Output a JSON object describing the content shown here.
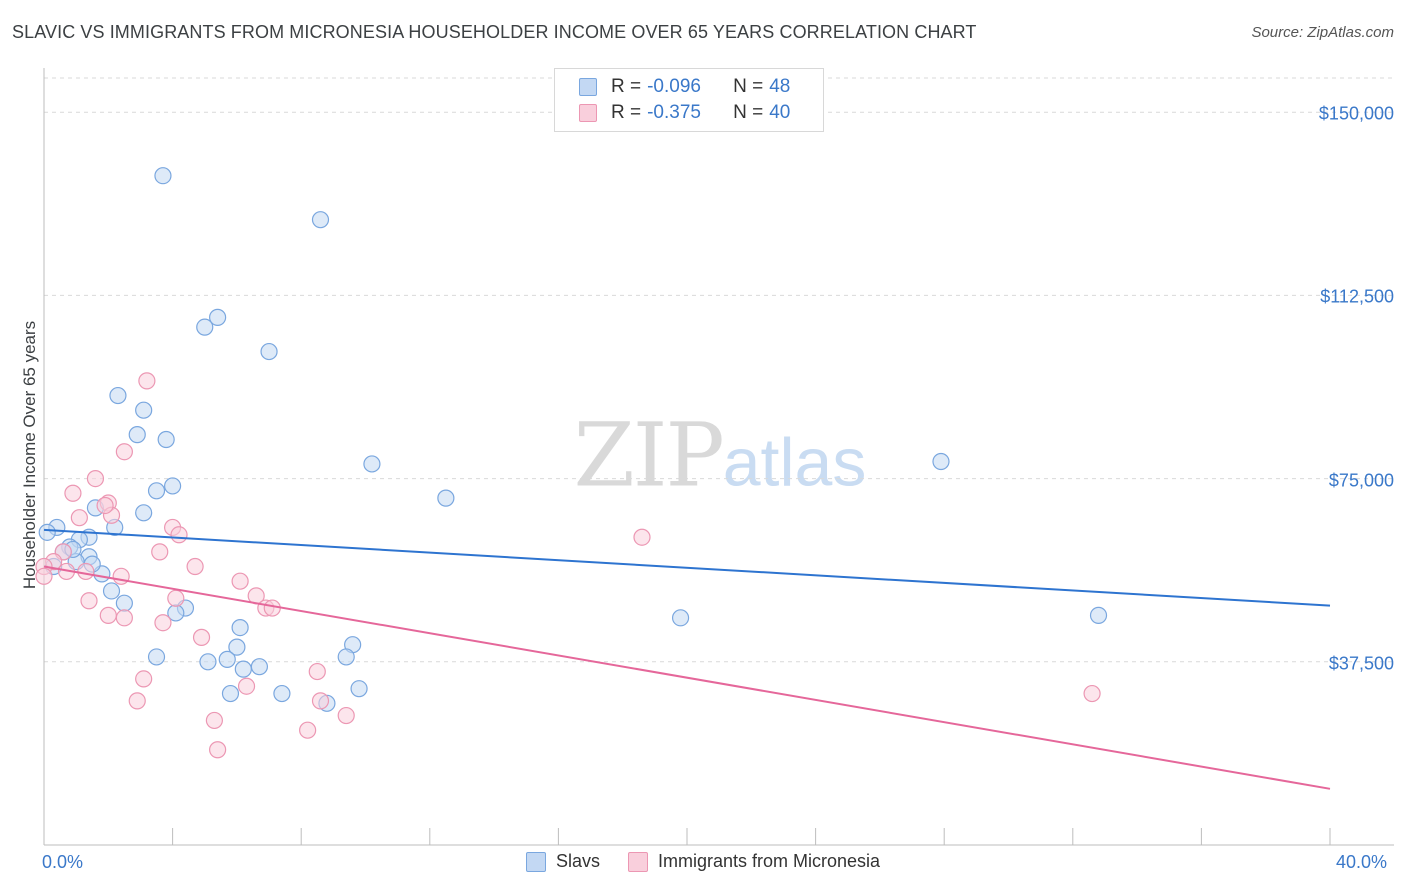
{
  "title": "SLAVIC VS IMMIGRANTS FROM MICRONESIA HOUSEHOLDER INCOME OVER 65 YEARS CORRELATION CHART",
  "source": "Source: ZipAtlas.com",
  "watermark": {
    "zip": "ZIP",
    "atlas": "atlas"
  },
  "legend_top": {
    "rows": [
      {
        "r_label": "R = ",
        "r_value": "-0.096",
        "n_label": "N = ",
        "n_value": "48"
      },
      {
        "r_label": "R = ",
        "r_value": "-0.375",
        "n_label": "N = ",
        "n_value": "40"
      }
    ]
  },
  "legend_bottom": [
    "Slavs",
    "Immigrants from Micronesia"
  ],
  "colors": {
    "blue_fill": "#c3d8f3",
    "blue_stroke": "#7aa7df",
    "blue_line": "#2e74d0",
    "pink_fill": "#f9cfdc",
    "pink_stroke": "#ec97b3",
    "pink_line": "#e5679a",
    "tick_label": "#3a78c9",
    "grid": "#d9d9d9"
  },
  "chart_data": {
    "type": "scatter",
    "title": "SLAVIC VS IMMIGRANTS FROM MICRONESIA HOUSEHOLDER INCOME OVER 65 YEARS CORRELATION CHART",
    "xlabel": "",
    "ylabel": "Householder Income Over 65 years",
    "xlim": [
      0,
      40
    ],
    "ylim": [
      0,
      157000
    ],
    "x_tick_labels": [
      "0.0%",
      "40.0%"
    ],
    "y_ticks": [
      37500,
      75000,
      112500,
      150000
    ],
    "y_tick_labels": [
      "$37,500",
      "$75,000",
      "$112,500",
      "$150,000"
    ],
    "grid": "horizontal dashed",
    "series": [
      {
        "name": "Slavs",
        "points": [
          [
            3.7,
            137000
          ],
          [
            8.6,
            128000
          ],
          [
            5.4,
            108000
          ],
          [
            5.0,
            106000
          ],
          [
            7.0,
            101000
          ],
          [
            2.3,
            92000
          ],
          [
            3.1,
            89000
          ],
          [
            2.9,
            84000
          ],
          [
            3.8,
            83000
          ],
          [
            10.2,
            78000
          ],
          [
            27.9,
            78500
          ],
          [
            12.5,
            71000
          ],
          [
            4.0,
            73500
          ],
          [
            3.5,
            72500
          ],
          [
            1.6,
            69000
          ],
          [
            3.1,
            68000
          ],
          [
            0.4,
            65000
          ],
          [
            2.2,
            65000
          ],
          [
            0.1,
            64000
          ],
          [
            1.4,
            63000
          ],
          [
            1.1,
            62500
          ],
          [
            0.8,
            61000
          ],
          [
            0.6,
            60000
          ],
          [
            1.4,
            59000
          ],
          [
            1.0,
            58000
          ],
          [
            1.8,
            55500
          ],
          [
            2.1,
            52000
          ],
          [
            2.5,
            49500
          ],
          [
            4.4,
            48500
          ],
          [
            4.1,
            47500
          ],
          [
            6.1,
            44500
          ],
          [
            19.8,
            46500
          ],
          [
            32.8,
            47000
          ],
          [
            9.6,
            41000
          ],
          [
            6.0,
            40500
          ],
          [
            3.5,
            38500
          ],
          [
            9.4,
            38500
          ],
          [
            5.7,
            38000
          ],
          [
            5.1,
            37500
          ],
          [
            6.7,
            36500
          ],
          [
            6.2,
            36000
          ],
          [
            9.8,
            32000
          ],
          [
            5.8,
            31000
          ],
          [
            7.4,
            31000
          ],
          [
            8.8,
            29000
          ],
          [
            0.3,
            57000
          ],
          [
            0.9,
            60500
          ],
          [
            1.5,
            57500
          ]
        ]
      },
      {
        "name": "Immigrants from Micronesia",
        "points": [
          [
            3.2,
            95000
          ],
          [
            2.5,
            80500
          ],
          [
            1.6,
            75000
          ],
          [
            0.9,
            72000
          ],
          [
            2.0,
            70000
          ],
          [
            1.1,
            67000
          ],
          [
            2.1,
            67500
          ],
          [
            4.0,
            65000
          ],
          [
            4.2,
            63500
          ],
          [
            18.6,
            63000
          ],
          [
            0.6,
            60000
          ],
          [
            0.3,
            58000
          ],
          [
            0.0,
            57000
          ],
          [
            0.7,
            56000
          ],
          [
            1.3,
            56000
          ],
          [
            3.6,
            60000
          ],
          [
            4.7,
            57000
          ],
          [
            2.4,
            55000
          ],
          [
            6.1,
            54000
          ],
          [
            0.0,
            55000
          ],
          [
            1.4,
            50000
          ],
          [
            4.1,
            50500
          ],
          [
            6.6,
            51000
          ],
          [
            2.5,
            46500
          ],
          [
            2.0,
            47000
          ],
          [
            6.9,
            48500
          ],
          [
            7.1,
            48500
          ],
          [
            3.7,
            45500
          ],
          [
            4.9,
            42500
          ],
          [
            8.5,
            35500
          ],
          [
            3.1,
            34000
          ],
          [
            6.3,
            32500
          ],
          [
            2.9,
            29500
          ],
          [
            8.6,
            29500
          ],
          [
            9.4,
            26500
          ],
          [
            5.3,
            25500
          ],
          [
            8.2,
            23500
          ],
          [
            5.4,
            19500
          ],
          [
            32.6,
            31000
          ],
          [
            1.9,
            69500
          ]
        ]
      }
    ],
    "trend_lines": [
      {
        "series": "Slavs",
        "x": [
          0,
          40
        ],
        "y": [
          64500,
          49000
        ]
      },
      {
        "series": "Immigrants from Micronesia",
        "x": [
          0,
          40
        ],
        "y": [
          57000,
          11500
        ]
      }
    ]
  }
}
